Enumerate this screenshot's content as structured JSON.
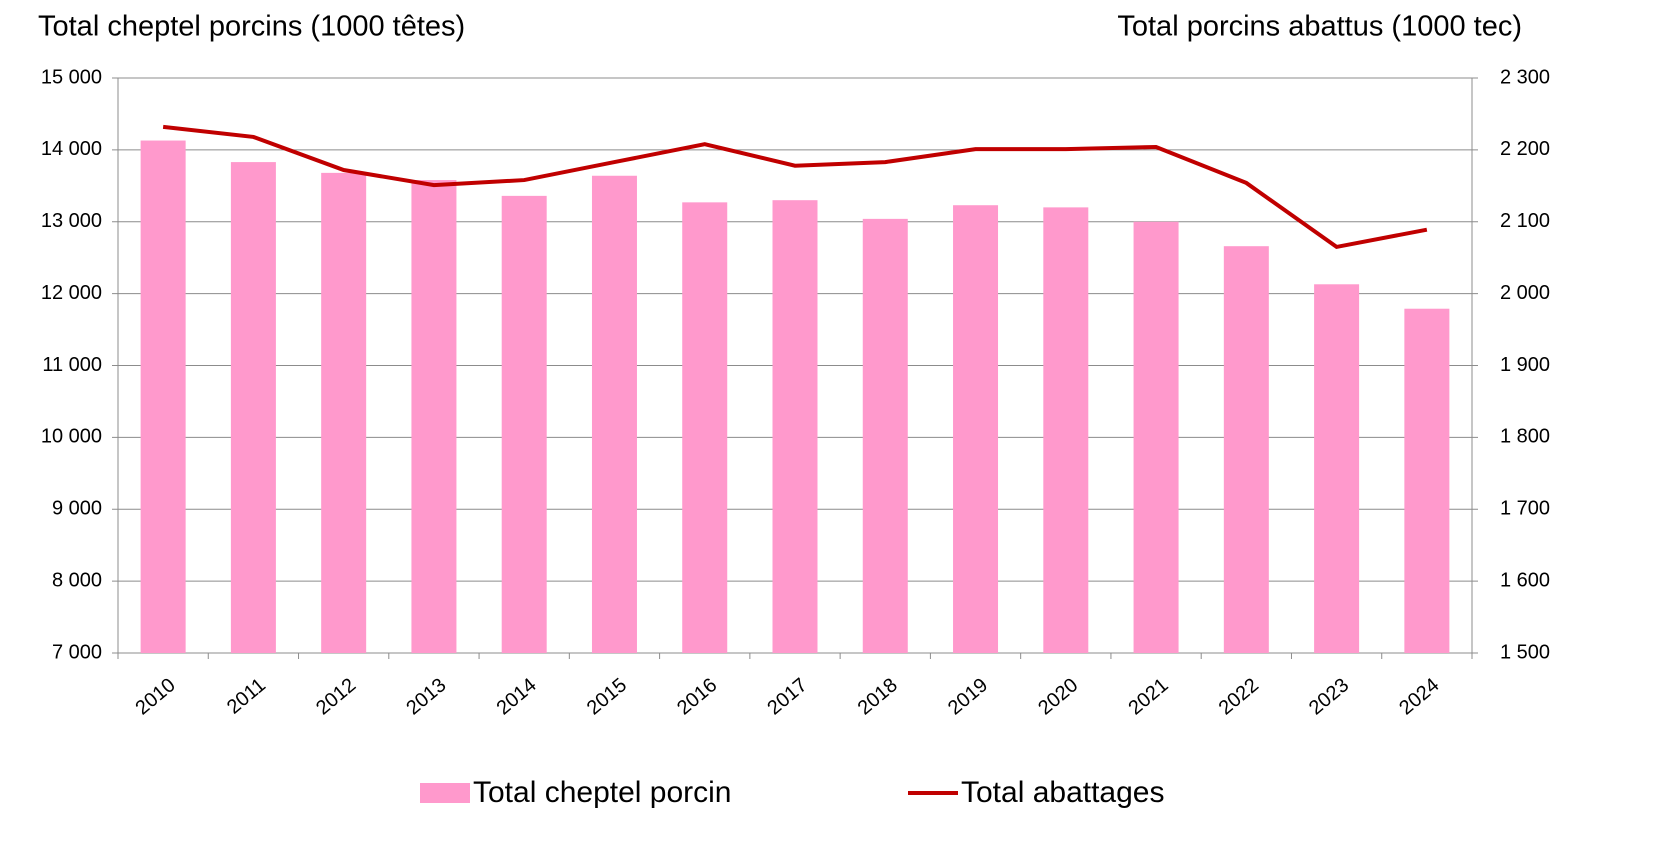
{
  "chart_data": {
    "type": "bar",
    "title": "Total cheptel porcins (1000 têtes)",
    "y2_title": "Total porcins abattus (1000 tec)",
    "categories": [
      "2010",
      "2011",
      "2012",
      "2013",
      "2014",
      "2015",
      "2016",
      "2017",
      "2018",
      "2019",
      "2020",
      "2021",
      "2022",
      "2023",
      "2024"
    ],
    "series": [
      {
        "name": "Total cheptel porcin",
        "type": "bar",
        "color": "#ff99cc",
        "values": [
          14130,
          13830,
          13680,
          13580,
          13360,
          13640,
          13270,
          13300,
          13040,
          13230,
          13200,
          13000,
          12660,
          12130,
          11790
        ]
      },
      {
        "name": "Total abattages",
        "type": "line",
        "axis": "y2",
        "color": "#c00000",
        "values": [
          2232,
          2218,
          2172,
          2151,
          2158,
          2183,
          2208,
          2178,
          2183,
          2201,
          2201,
          2204,
          2154,
          2065,
          2089
        ]
      }
    ],
    "ylim": [
      7000,
      15000
    ],
    "yticks": [
      {
        "value": 7000,
        "label": "7 000"
      },
      {
        "value": 8000,
        "label": "8 000"
      },
      {
        "value": 9000,
        "label": "9 000"
      },
      {
        "value": 10000,
        "label": "10 000"
      },
      {
        "value": 11000,
        "label": "11 000"
      },
      {
        "value": 12000,
        "label": "12 000"
      },
      {
        "value": 13000,
        "label": "13 000"
      },
      {
        "value": 14000,
        "label": "14 000"
      },
      {
        "value": 15000,
        "label": "15 000"
      }
    ],
    "y2lim": [
      1500,
      2300
    ],
    "y2ticks": [
      {
        "value": 1500,
        "label": "1 500"
      },
      {
        "value": 1600,
        "label": "1 600"
      },
      {
        "value": 1700,
        "label": "1 700"
      },
      {
        "value": 1800,
        "label": "1 800"
      },
      {
        "value": 1900,
        "label": "1 900"
      },
      {
        "value": 2000,
        "label": "2 000"
      },
      {
        "value": 2100,
        "label": "2 100"
      },
      {
        "value": 2200,
        "label": "2 200"
      },
      {
        "value": 2300,
        "label": "2 300"
      }
    ],
    "grid": true,
    "legend": "bottom"
  }
}
